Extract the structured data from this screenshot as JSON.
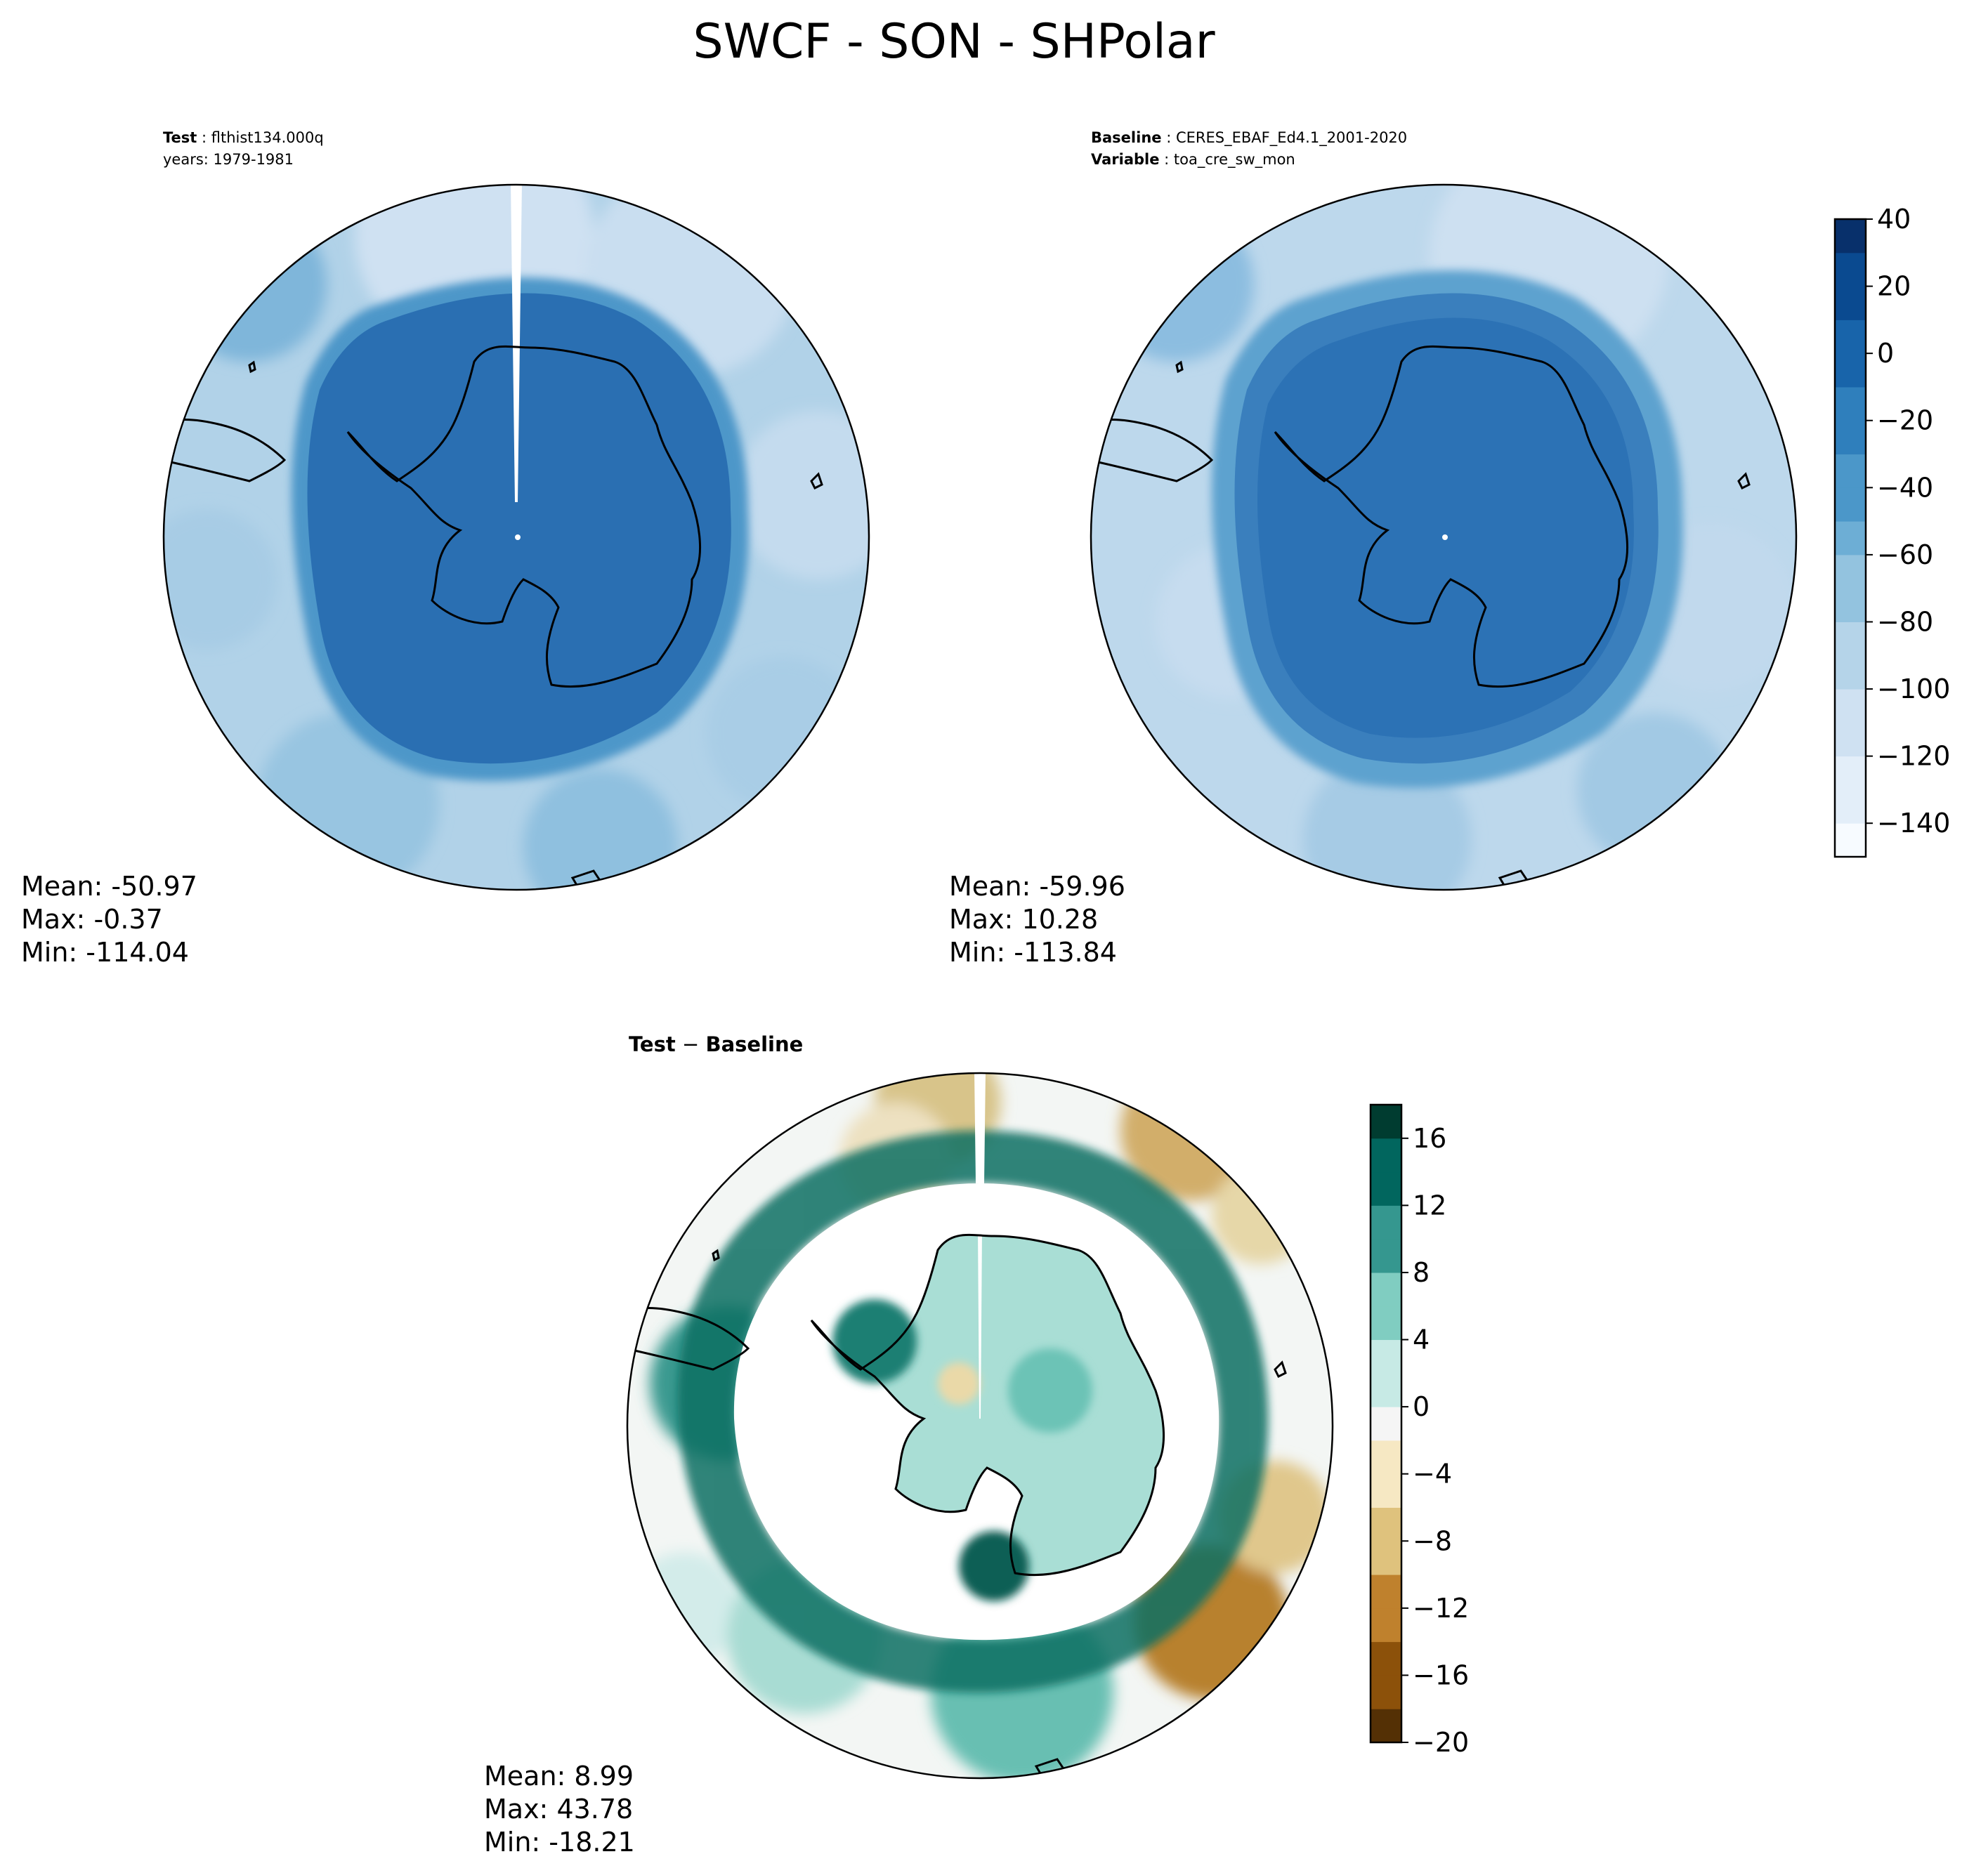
{
  "figure": {
    "title": "SWCF - SON - SHPolar"
  },
  "panels": {
    "test": {
      "label_key": "Test",
      "label_value": "flthist134.000q",
      "years": "years: 1979-1981",
      "stats": {
        "mean": "Mean: -50.97",
        "max": "Max: -0.37",
        "min": "Min: -114.04"
      }
    },
    "baseline": {
      "label_key": "Baseline",
      "label_value": "CERES_EBAF_Ed4.1_2001-2020",
      "var_key": "Variable",
      "var_value": "toa_cre_sw_mon",
      "stats": {
        "mean": "Mean: -59.96",
        "max": "Max: 10.28",
        "min": "Min: -113.84"
      }
    },
    "diff": {
      "title_left": "Test",
      "title_sep": " − ",
      "title_right": "Baseline",
      "stats": {
        "mean": "Mean:  8.99",
        "max": "Max: 43.78",
        "min": "Min: -18.21"
      }
    }
  },
  "colorbars": {
    "main": {
      "ticks": [
        "40",
        "20",
        "0",
        "−20",
        "−40",
        "−60",
        "−80",
        "−100",
        "−120",
        "−140"
      ]
    },
    "diff": {
      "ticks": [
        "16",
        "12",
        "8",
        "4",
        "0",
        "−4",
        "−8",
        "−12",
        "−16",
        "−20"
      ]
    }
  },
  "colors": {
    "blue_scale": [
      "#f7fbff",
      "#e3eef9",
      "#cfe1f2",
      "#b5d4e9",
      "#93c3df",
      "#6daed5",
      "#4b97c9",
      "#2f7fbc",
      "#1864aa",
      "#0a4a90",
      "#08306b"
    ],
    "diff_scale": [
      "#543005",
      "#8c510a",
      "#bf812d",
      "#dfc27d",
      "#f6e8c3",
      "#f5f5f5",
      "#c7eae5",
      "#80cdc1",
      "#35978f",
      "#01665e",
      "#003c30"
    ]
  },
  "chart_data": [
    {
      "type": "heatmap",
      "projection": "south-polar-stereographic",
      "title": "Test: flthist134.000q",
      "subtitle": "years: 1979-1981",
      "variable": "SWCF",
      "season": "SON",
      "mean": -50.97,
      "max": -0.37,
      "min": -114.04,
      "colorbar_range": [
        -150,
        40
      ],
      "colorbar_ticks": [
        -140,
        -120,
        -100,
        -80,
        -60,
        -40,
        -20,
        0,
        20,
        40
      ]
    },
    {
      "type": "heatmap",
      "projection": "south-polar-stereographic",
      "title": "Baseline: CERES_EBAF_Ed4.1_2001-2020",
      "subtitle": "Variable: toa_cre_sw_mon",
      "variable": "SWCF",
      "season": "SON",
      "mean": -59.96,
      "max": 10.28,
      "min": -113.84,
      "colorbar_range": [
        -150,
        40
      ],
      "colorbar_ticks": [
        -140,
        -120,
        -100,
        -80,
        -60,
        -40,
        -20,
        0,
        20,
        40
      ]
    },
    {
      "type": "heatmap",
      "projection": "south-polar-stereographic",
      "title": "Test − Baseline",
      "variable": "SWCF",
      "season": "SON",
      "mean": 8.99,
      "max": 43.78,
      "min": -18.21,
      "colorbar_range": [
        -20,
        18
      ],
      "colorbar_ticks": [
        -20,
        -16,
        -12,
        -8,
        -4,
        0,
        4,
        8,
        12,
        16
      ]
    }
  ]
}
